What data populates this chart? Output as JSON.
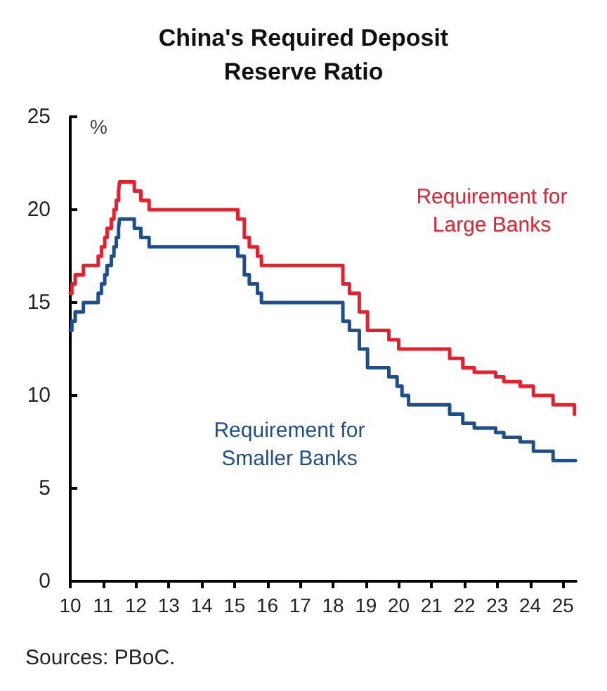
{
  "chart_data": {
    "type": "step",
    "title": "China's Required Deposit\nReserve Ratio",
    "ylabel": "%",
    "annotations": [
      "Sources: PBoC."
    ],
    "xlim": [
      10,
      25.4
    ],
    "xticks": [
      10,
      11,
      12,
      13,
      14,
      15,
      16,
      17,
      18,
      19,
      20,
      21,
      22,
      23,
      24,
      25
    ],
    "ylim": [
      0,
      25
    ],
    "yticks": [
      0,
      5,
      10,
      15,
      20,
      25
    ],
    "grid": false,
    "legend": false,
    "series": [
      {
        "name": "Requirement for\nLarge Banks",
        "color": "#e8202e",
        "x": [
          10.0,
          10.05,
          10.15,
          10.4,
          10.85,
          10.95,
          11.05,
          11.12,
          11.25,
          11.33,
          11.4,
          11.47,
          11.5,
          11.95,
          12.15,
          12.4,
          15.1,
          15.3,
          15.45,
          15.7,
          15.82,
          18.3,
          18.5,
          18.8,
          19.05,
          19.7,
          20.0,
          21.55,
          21.95,
          22.3,
          22.95,
          23.2,
          23.7,
          24.1,
          24.7,
          25.35,
          25.38
        ],
        "values": [
          15.5,
          16,
          16.5,
          17,
          17.5,
          18,
          18.5,
          19,
          19.5,
          20,
          20.5,
          21,
          21.5,
          21,
          20.5,
          20,
          19.5,
          18.5,
          18,
          17.5,
          17,
          16,
          15.5,
          14.5,
          13.5,
          13,
          12.5,
          12,
          11.5,
          11.25,
          11,
          10.75,
          10.5,
          10,
          9.5,
          9,
          9
        ]
      },
      {
        "name": "Requirement for\nSmaller Banks",
        "color": "#1f4e8c",
        "x": [
          10.0,
          10.05,
          10.15,
          10.4,
          10.85,
          10.95,
          11.05,
          11.12,
          11.25,
          11.33,
          11.4,
          11.47,
          11.5,
          11.95,
          12.15,
          12.4,
          15.1,
          15.3,
          15.45,
          15.7,
          15.82,
          18.3,
          18.5,
          18.8,
          19.05,
          19.7,
          19.95,
          20.1,
          20.3,
          21.55,
          21.95,
          22.3,
          22.95,
          23.2,
          23.7,
          24.1,
          24.7,
          25.38
        ],
        "values": [
          13.5,
          14,
          14.5,
          15,
          15.5,
          16,
          16.5,
          17,
          17.5,
          18,
          18.5,
          19,
          19.5,
          19,
          18.5,
          18,
          17.5,
          16.5,
          16,
          15.5,
          15,
          14,
          13.5,
          12.5,
          11.5,
          11,
          10.5,
          10,
          9.5,
          9,
          8.5,
          8.25,
          8,
          7.75,
          7.5,
          7,
          6.5,
          6.5
        ]
      }
    ]
  }
}
